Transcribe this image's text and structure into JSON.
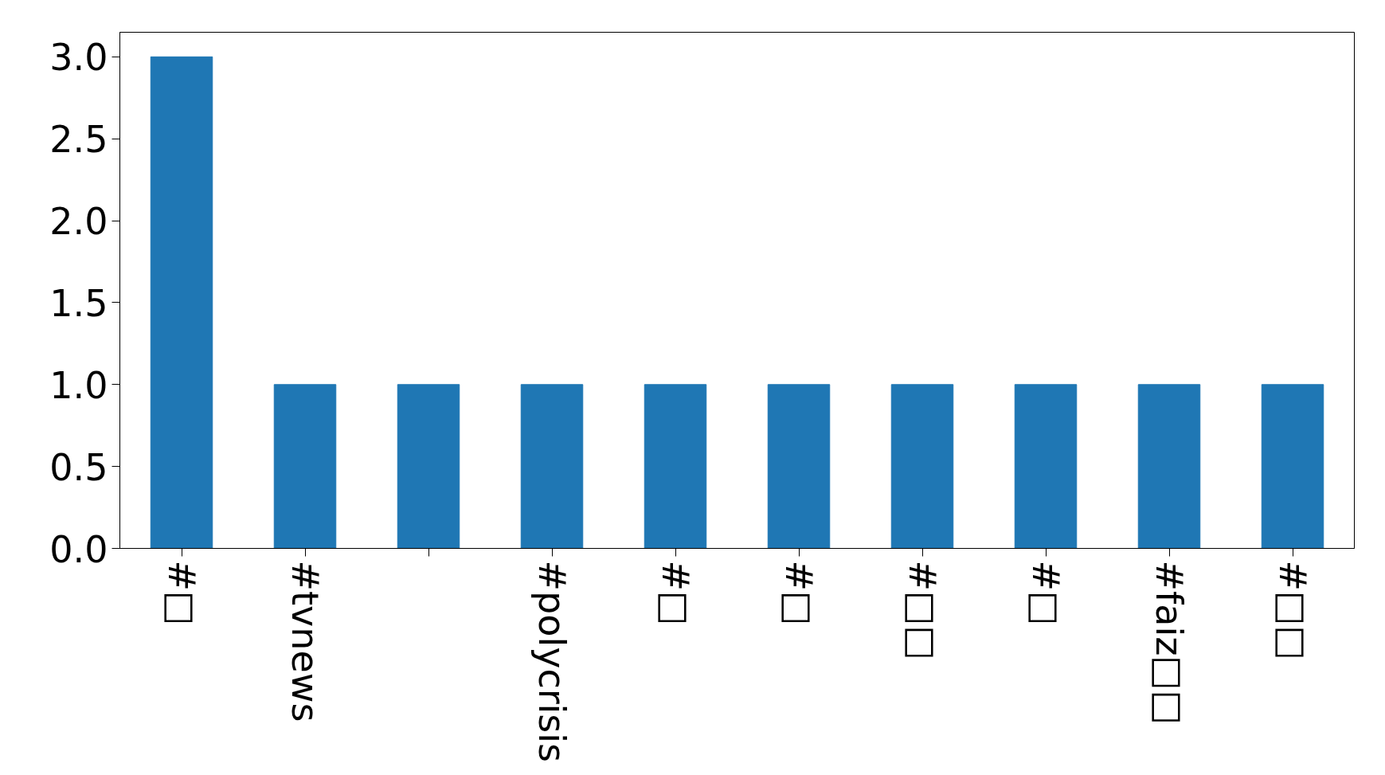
{
  "chart_data": {
    "type": "bar",
    "categories": [
      "#□",
      "#tvnews",
      null,
      "#polycrisis",
      "#□",
      "#□",
      "#□□",
      "#□",
      "#faiz□□",
      "#□□"
    ],
    "values": [
      3,
      1,
      1,
      1,
      1,
      1,
      1,
      1,
      1,
      1
    ],
    "color": "#1f77b4",
    "ylim": [
      0,
      3.15
    ],
    "yticks": [
      {
        "value": 0,
        "label": "0.0"
      },
      {
        "value": 0.5,
        "label": "0.5"
      },
      {
        "value": 1,
        "label": "1.0"
      },
      {
        "value": 1.5,
        "label": "1.5"
      },
      {
        "value": 2,
        "label": "2.0"
      },
      {
        "value": 2.5,
        "label": "2.5"
      },
      {
        "value": 3,
        "label": "3.0"
      }
    ],
    "grid": false
  }
}
